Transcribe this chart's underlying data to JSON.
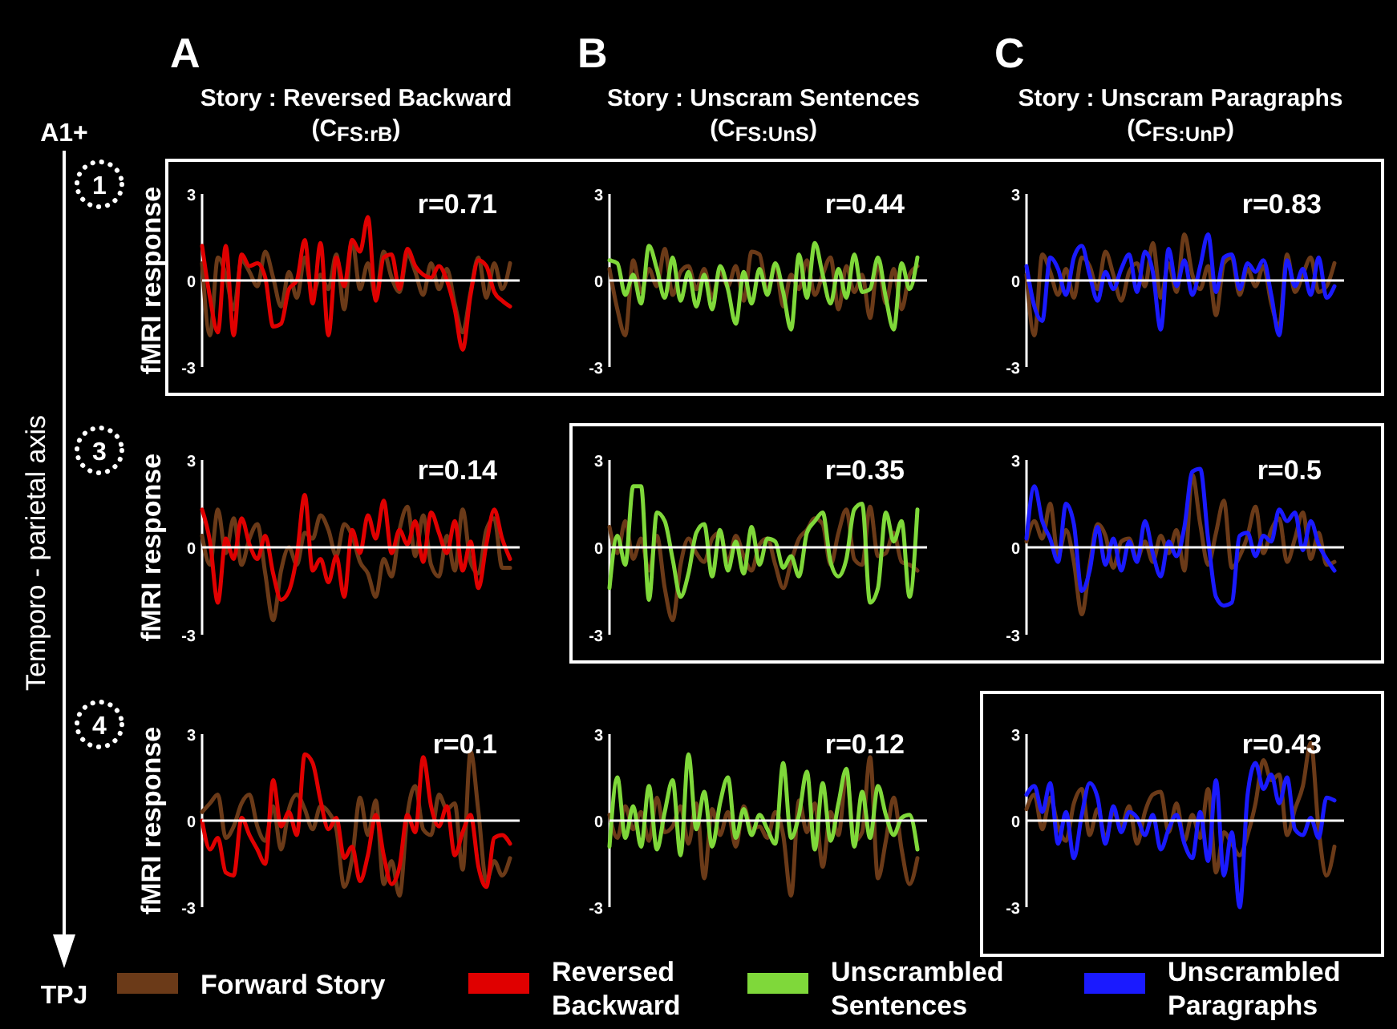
{
  "chart_data": [
    {
      "type": "line",
      "title": "A",
      "subtitle": "Story : Reversed Backward (C$_{FS:rB}$)",
      "ylabel": "fMRI response",
      "annotations": [
        "r=0.71",
        "1",
        "A1+",
        "Temporo - parietal axis",
        "TPJ"
      ],
      "ylim": [
        -3,
        3
      ],
      "yticks": [
        3,
        0,
        -3
      ],
      "categories": [
        null,
        null,
        null,
        null,
        null,
        null,
        null,
        null,
        null,
        null,
        null,
        null,
        null,
        null,
        null,
        null,
        null,
        null,
        null,
        null,
        null,
        null,
        null,
        null,
        null,
        null,
        null,
        null,
        null,
        null,
        null,
        null,
        null,
        null,
        null,
        null,
        null,
        null,
        null,
        null
      ],
      "series": [
        {
          "color": "#6b3a18",
          "values": [
            0.6,
            -1.9,
            0.8,
            0.2,
            -1.0,
            0.7,
            0.3,
            -0.2,
            1.0,
            0.1,
            -0.9,
            0.3,
            -0.6,
            0.8,
            -0.5,
            0.2,
            -0.3,
            0.9,
            -1.0,
            1.4,
            -0.3,
            0.6,
            -0.6,
            1.0,
            0.1,
            -0.4,
            0.9,
            0.3,
            -0.5,
            0.6,
            -0.3,
            0.4,
            -0.8,
            -1.8,
            -0.4,
            0.8,
            -0.6,
            0.6,
            -0.3,
            0.6
          ]
        },
        {
          "color": "#e00000",
          "values": [
            1.2,
            -0.6,
            -1.8,
            1.2,
            -1.9,
            0.9,
            0.5,
            0.6,
            0.1,
            -1.6,
            -1.5,
            -0.3,
            0,
            1.4,
            -0.8,
            1.3,
            -1.9,
            0.8,
            -0.2,
            1.4,
            1.0,
            2.2,
            -0.7,
            0.8,
            0.9,
            -0.3,
            1.1,
            0.5,
            0.2,
            0.1,
            0.5,
            0,
            -1.0,
            -2.4,
            -0.5,
            0.7,
            0.5,
            -0.4,
            -0.7,
            -0.9
          ]
        }
      ]
    },
    {
      "type": "line",
      "title": "B",
      "subtitle": "Story : Unscram Sentences (C$_{FS:UnS}$)",
      "annotations": [
        "r=0.44"
      ],
      "ylim": [
        -3,
        3
      ],
      "yticks": [
        3,
        0,
        -3
      ],
      "categories": [
        null,
        null,
        null,
        null,
        null,
        null,
        null,
        null,
        null,
        null,
        null,
        null,
        null,
        null,
        null,
        null,
        null,
        null,
        null,
        null,
        null,
        null,
        null,
        null,
        null,
        null,
        null,
        null,
        null,
        null,
        null,
        null,
        null,
        null,
        null,
        null,
        null,
        null,
        null,
        null
      ],
      "series": [
        {
          "color": "#6b3a18",
          "values": [
            0.4,
            -1.0,
            -1.9,
            0.7,
            -0.4,
            0.4,
            -0.2,
            1.1,
            -0.5,
            0.3,
            0.5,
            -0.3,
            0.4,
            -0.6,
            0.3,
            -0.2,
            0.5,
            -0.7,
            1.0,
            0.9,
            -0.4,
            0.6,
            -0.9,
            0.2,
            -0.3,
            0.7,
            -0.5,
            0.2,
            0.8,
            -1.0,
            0.5,
            -0.4,
            0.2,
            -1.3,
            0.6,
            -0.8,
            0.4,
            -1.0,
            0.2,
            0.5
          ]
        },
        {
          "color": "#7fd83a",
          "values": [
            0.7,
            0.6,
            -0.5,
            0.2,
            -0.8,
            1.2,
            0.4,
            -0.6,
            0.8,
            -0.7,
            0.3,
            -0.9,
            0.2,
            -1.0,
            0.5,
            -0.3,
            -1.5,
            0.3,
            -0.8,
            0.4,
            -0.5,
            0.6,
            -0.4,
            -1.7,
            0.9,
            -0.6,
            1.3,
            0.2,
            -0.8,
            0.4,
            -0.6,
            0.9,
            -0.4,
            -0.3,
            0.8,
            -0.6,
            -1.7,
            0.6,
            -0.3,
            0.8
          ]
        }
      ]
    },
    {
      "type": "line",
      "title": "C",
      "subtitle": "Story : Unscram Paragraphs (C$_{FS:UnP}$)",
      "annotations": [
        "r=0.83"
      ],
      "ylim": [
        -3,
        3
      ],
      "yticks": [
        3,
        0,
        -3
      ],
      "categories": [
        null,
        null,
        null,
        null,
        null,
        null,
        null,
        null,
        null,
        null,
        null,
        null,
        null,
        null,
        null,
        null,
        null,
        null,
        null,
        null,
        null,
        null,
        null,
        null,
        null,
        null,
        null,
        null,
        null,
        null,
        null,
        null,
        null,
        null,
        null,
        null,
        null,
        null,
        null,
        null
      ],
      "series": [
        {
          "color": "#6b3a18",
          "values": [
            0.2,
            -1.9,
            0.9,
            0.3,
            -0.5,
            0.4,
            -0.6,
            0.8,
            0.5,
            -0.3,
            1.0,
            0.2,
            -0.7,
            0.3,
            0.6,
            -0.2,
            1.3,
            -0.6,
            0.6,
            -0.4,
            1.6,
            0.2,
            -0.3,
            0.5,
            -1.2,
            0.6,
            0.8,
            -0.5,
            0.4,
            -0.2,
            0.5,
            -0.8,
            -1.6,
            0.9,
            -0.4,
            0.2,
            0.8,
            -0.4,
            -0.2,
            0.6
          ]
        },
        {
          "color": "#1a1aff",
          "values": [
            0.5,
            -0.9,
            -1.4,
            0.8,
            0.4,
            -0.5,
            0.8,
            1.2,
            0.2,
            -0.7,
            0.3,
            -0.3,
            0.4,
            0.9,
            -0.4,
            1.0,
            0.3,
            -1.7,
            1.1,
            -0.2,
            0.7,
            -0.5,
            0.5,
            1.6,
            -0.4,
            0.8,
            0.9,
            -0.3,
            0.6,
            0.3,
            0.7,
            -0.5,
            -1.9,
            0.7,
            -0.2,
            0.4,
            -0.5,
            0.8,
            -0.6,
            -0.2
          ]
        }
      ]
    },
    {
      "type": "line",
      "ylabel": "fMRI response",
      "annotations": [
        "r=0.14",
        "3"
      ],
      "ylim": [
        -3,
        3
      ],
      "yticks": [
        3,
        0,
        -3
      ],
      "categories": [
        null,
        null,
        null,
        null,
        null,
        null,
        null,
        null,
        null,
        null,
        null,
        null,
        null,
        null,
        null,
        null,
        null,
        null,
        null,
        null,
        null,
        null,
        null,
        null,
        null,
        null,
        null,
        null,
        null,
        null,
        null,
        null,
        null,
        null,
        null,
        null,
        null,
        null,
        null,
        null
      ],
      "series": [
        {
          "color": "#6b3a18",
          "values": [
            0.4,
            -0.6,
            1.3,
            -0.2,
            1.0,
            -0.6,
            0.3,
            0.8,
            -0.9,
            -2.5,
            -0.8,
            0,
            -0.6,
            0.5,
            0.3,
            1.1,
            0.6,
            -0.3,
            0.8,
            0.4,
            -0.5,
            -0.9,
            -1.7,
            -0.4,
            -1.0,
            0.6,
            1.4,
            -0.3,
            1.1,
            -0.6,
            -1.0,
            0.4,
            -0.8,
            1.3,
            -0.5,
            -0.9,
            0.6,
            1.0,
            -0.7,
            -0.7
          ]
        },
        {
          "color": "#e00000",
          "values": [
            1.3,
            0.2,
            -1.9,
            0.3,
            -0.4,
            1.0,
            0.1,
            -0.4,
            0.4,
            -0.9,
            -1.8,
            -1.5,
            -0.3,
            1.8,
            -0.8,
            -0.4,
            -1.2,
            -0.3,
            -1.7,
            0.6,
            -0.2,
            1.1,
            0.3,
            1.6,
            -0.2,
            0.6,
            0.1,
            0.9,
            -0.5,
            1.2,
            0.5,
            -0.2,
            0.9,
            -0.8,
            0.2,
            -1.4,
            0.1,
            1.3,
            0.3,
            -0.4
          ]
        }
      ]
    },
    {
      "type": "line",
      "annotations": [
        "r=0.35"
      ],
      "ylim": [
        -3,
        3
      ],
      "yticks": [
        3,
        0,
        -3
      ],
      "categories": [
        null,
        null,
        null,
        null,
        null,
        null,
        null,
        null,
        null,
        null,
        null,
        null,
        null,
        null,
        null,
        null,
        null,
        null,
        null,
        null,
        null,
        null,
        null,
        null,
        null,
        null,
        null,
        null,
        null,
        null,
        null,
        null,
        null,
        null,
        null,
        null,
        null,
        null,
        null,
        null
      ],
      "series": [
        {
          "color": "#6b3a18",
          "values": [
            0.7,
            -0.2,
            0.9,
            -0.4,
            0.3,
            -0.8,
            0.4,
            -1.4,
            -2.5,
            -0.6,
            0.3,
            -0.2,
            -0.5,
            0.3,
            0.5,
            -0.5,
            0.4,
            -0.3,
            -0.8,
            0.1,
            0.3,
            -0.6,
            -1.4,
            -0.5,
            0.3,
            0.6,
            1.0,
            0.8,
            -0.6,
            0.5,
            1.3,
            -0.4,
            -0.6,
            1.4,
            -0.3,
            -0.2,
            0.5,
            -0.5,
            -0.6,
            -0.8
          ]
        },
        {
          "color": "#7fd83a",
          "values": [
            -1.4,
            0.4,
            -0.6,
            2.1,
            2.1,
            -1.8,
            1.2,
            0.9,
            -0.4,
            -1.7,
            -0.9,
            0.5,
            0.8,
            -1.0,
            0.6,
            -0.8,
            0.2,
            -0.9,
            0.7,
            -0.6,
            0.3,
            0.2,
            -0.7,
            -0.3,
            -1.0,
            0.5,
            0.9,
            1.2,
            -0.5,
            -1.0,
            -0.4,
            1.3,
            1.5,
            -1.9,
            -1.4,
            1.2,
            0.2,
            0.9,
            -1.7,
            1.3
          ]
        }
      ]
    },
    {
      "type": "line",
      "annotations": [
        "r=0.5"
      ],
      "ylim": [
        -3,
        3
      ],
      "yticks": [
        3,
        0,
        -3
      ],
      "categories": [
        null,
        null,
        null,
        null,
        null,
        null,
        null,
        null,
        null,
        null,
        null,
        null,
        null,
        null,
        null,
        null,
        null,
        null,
        null,
        null,
        null,
        null,
        null,
        null,
        null,
        null,
        null,
        null,
        null,
        null,
        null,
        null,
        null,
        null,
        null,
        null,
        null,
        null,
        null,
        null
      ],
      "series": [
        {
          "color": "#6b3a18",
          "values": [
            0.2,
            0.9,
            0.3,
            1.5,
            -0.3,
            0.6,
            -0.5,
            -2.3,
            -0.6,
            0.8,
            0.4,
            -0.7,
            0.2,
            0.3,
            -0.4,
            0.2,
            -0.5,
            0.4,
            -0.2,
            0.6,
            -0.8,
            2.5,
            0.8,
            -0.6,
            0.5,
            1.6,
            -0.7,
            -0.3,
            0.4,
            1.4,
            -0.2,
            0.6,
            1.0,
            -0.5,
            0.3,
            1.2,
            -0.4,
            0.5,
            -0.6,
            -0.5
          ]
        },
        {
          "color": "#1a1aff",
          "values": [
            0.3,
            2.1,
            0.9,
            0.3,
            -0.5,
            1.5,
            0.8,
            -1.5,
            -0.8,
            0.7,
            -0.6,
            0.3,
            -0.8,
            0.2,
            -0.5,
            0.9,
            -0.2,
            -1.0,
            0.2,
            -0.3,
            0.7,
            2.6,
            2.7,
            0.3,
            -1.7,
            -2.0,
            -1.9,
            0.4,
            0.5,
            -0.3,
            0.4,
            0.2,
            1.3,
            0.9,
            1.2,
            -0.1,
            0.9,
            0.1,
            -0.4,
            -0.8
          ]
        }
      ]
    },
    {
      "type": "line",
      "ylabel": "fMRI response",
      "annotations": [
        "r=0.1",
        "4"
      ],
      "legend": "bottom",
      "ylim": [
        -3,
        3
      ],
      "yticks": [
        3,
        0,
        -3
      ],
      "categories": [
        null,
        null,
        null,
        null,
        null,
        null,
        null,
        null,
        null,
        null,
        null,
        null,
        null,
        null,
        null,
        null,
        null,
        null,
        null,
        null,
        null,
        null,
        null,
        null,
        null,
        null,
        null,
        null,
        null,
        null,
        null,
        null,
        null,
        null,
        null,
        null,
        null,
        null,
        null,
        null
      ],
      "series": [
        {
          "name": "Forward Story",
          "color": "#6b3a18",
          "values": [
            0.3,
            0.6,
            0.9,
            -0.6,
            -0.2,
            0.6,
            0.9,
            -0.2,
            -0.7,
            0.5,
            -1.0,
            0.4,
            0.9,
            0.4,
            -0.3,
            0.5,
            0.3,
            -0.3,
            -2.3,
            -1.3,
            0.8,
            -0.5,
            0.7,
            -2.2,
            -1.4,
            -2.6,
            0.2,
            1.2,
            -0.3,
            -0.5,
            0.9,
            0.4,
            0.6,
            -1.7,
            2.4,
            0.3,
            -2.1,
            -1.4,
            -1.9,
            -1.3
          ]
        },
        {
          "name": "Reversed Backward",
          "color": "#e00000",
          "values": [
            0,
            -1.0,
            -0.6,
            -1.8,
            -1.9,
            0.1,
            -0.5,
            -1.0,
            -1.5,
            1.4,
            -0.2,
            0.3,
            -0.5,
            2.3,
            2.0,
            0.7,
            -0.3,
            0.1,
            -1.3,
            -0.9,
            -2.1,
            -1.2,
            0.2,
            -1.2,
            -2.2,
            -1.6,
            0.2,
            -0.4,
            2.2,
            0.5,
            -0.2,
            0.5,
            -1.2,
            -0.4,
            0.2,
            -1.6,
            -2.3,
            -0.6,
            -0.5,
            -0.8
          ]
        }
      ]
    },
    {
      "type": "line",
      "annotations": [
        "r=0.12"
      ],
      "legend": "bottom",
      "ylim": [
        -3,
        3
      ],
      "yticks": [
        3,
        0,
        -3
      ],
      "categories": [
        null,
        null,
        null,
        null,
        null,
        null,
        null,
        null,
        null,
        null,
        null,
        null,
        null,
        null,
        null,
        null,
        null,
        null,
        null,
        null,
        null,
        null,
        null,
        null,
        null,
        null,
        null,
        null,
        null,
        null,
        null,
        null,
        null,
        null,
        null,
        null,
        null,
        null,
        null,
        null
      ],
      "series": [
        {
          "color": "#6b3a18",
          "values": [
            0.2,
            -0.6,
            0.5,
            -0.3,
            0.3,
            -0.7,
            0.8,
            -0.4,
            -0.2,
            0.5,
            -0.8,
            0.6,
            -2.0,
            0.4,
            -0.5,
            0.3,
            -0.9,
            0.5,
            -0.3,
            -0.2,
            -0.6,
            0.3,
            -0.5,
            -2.6,
            0.7,
            -0.4,
            0.6,
            -1.6,
            0.3,
            -0.5,
            1.6,
            -0.7,
            -0.4,
            2.2,
            -2.0,
            -0.7,
            0.8,
            -1.0,
            -2.2,
            -1.3
          ]
        },
        {
          "name": "Unscrambled Sentences",
          "color": "#7fd83a",
          "values": [
            -0.9,
            1.5,
            -0.6,
            0.5,
            -0.9,
            1.2,
            -1.0,
            0.3,
            1.4,
            -1.2,
            2.3,
            -0.3,
            1.0,
            -0.9,
            0.6,
            1.5,
            -0.6,
            0.4,
            -0.5,
            0.2,
            -0.3,
            -0.8,
            2.0,
            -0.6,
            0.2,
            1.7,
            -1.0,
            1.3,
            -0.7,
            0.6,
            1.8,
            -0.9,
            1.0,
            -0.6,
            1.2,
            0.2,
            -0.5,
            0.1,
            0.2,
            -1.0
          ]
        }
      ]
    },
    {
      "type": "line",
      "annotations": [
        "r=0.43"
      ],
      "legend": "bottom",
      "ylim": [
        -3,
        3
      ],
      "yticks": [
        3,
        0,
        -3
      ],
      "categories": [
        null,
        null,
        null,
        null,
        null,
        null,
        null,
        null,
        null,
        null,
        null,
        null,
        null,
        null,
        null,
        null,
        null,
        null,
        null,
        null,
        null,
        null,
        null,
        null,
        null,
        null,
        null,
        null,
        null,
        null,
        null,
        null,
        null,
        null,
        null,
        null,
        null,
        null,
        null,
        null
      ],
      "series": [
        {
          "color": "#6b3a18",
          "values": [
            0.4,
            0.9,
            -0.3,
            0.8,
            -0.2,
            -0.7,
            0.6,
            1.1,
            -0.5,
            0.4,
            -0.6,
            0.3,
            -0.2,
            0.5,
            -0.8,
            0.3,
            0.9,
            1.0,
            -0.4,
            0.6,
            -0.7,
            0.2,
            -0.6,
            1.1,
            -1.8,
            -0.4,
            -0.8,
            -1.2,
            -0.5,
            0.6,
            2.1,
            1.4,
            1.6,
            -0.5,
            0.4,
            1.2,
            2.7,
            -0.3,
            -1.9,
            -0.9
          ]
        },
        {
          "name": "Unscrambled Paragraphs",
          "color": "#1a1aff",
          "values": [
            0.9,
            1.2,
            0.3,
            1.3,
            -0.8,
            0.3,
            -1.3,
            0.2,
            1.3,
            0.8,
            -0.8,
            0.5,
            -0.4,
            0.3,
            0.1,
            -0.5,
            0.2,
            -1.0,
            -0.3,
            0.2,
            -0.8,
            -1.3,
            0.3,
            -1.4,
            1.4,
            -1.9,
            -0.4,
            -3.0,
            0.9,
            2.0,
            1.1,
            1.6,
            0.6,
            1.5,
            -0.3,
            -0.5,
            0.1,
            -0.6,
            0.8,
            0.7
          ]
        }
      ]
    }
  ]
}
